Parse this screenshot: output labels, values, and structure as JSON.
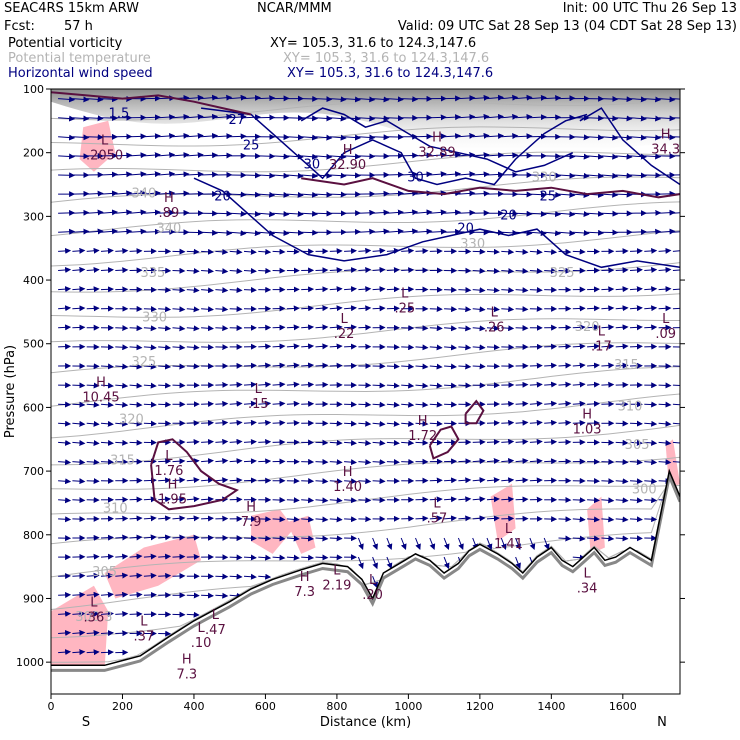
{
  "header": {
    "model": "SEAC4RS 15km ARW",
    "org": "NCAR/MMM",
    "init": "Init: 00 UTC Thu 26 Sep 13",
    "fcst_label": "Fcst:",
    "fcst_value": "57 h",
    "valid": "Valid: 09 UTC Sat 28 Sep 13 (04 CDT Sat 28 Sep 13)",
    "fields": [
      {
        "name": "Potential vorticity",
        "xy": "XY= 105.3, 31.6 to 124.3,147.6"
      },
      {
        "name": "Potential temperature",
        "xy": "XY= 105.3, 31.6 to 124.3,147.6"
      },
      {
        "name": "Horizontal wind speed",
        "xy": "XY= 105.3, 31.6 to 124.3,147.6"
      }
    ]
  },
  "colors": {
    "pv": "#5a1040",
    "theta": "#b4b4b4",
    "wind": "#000080",
    "shade": "#ffb6c1",
    "terrain": "#000000"
  },
  "chart_data": {
    "type": "cross-section",
    "xlabel": "Distance (km)",
    "ylabel": "Pressure (hPa)",
    "xlim": [
      0,
      1760
    ],
    "ylim": [
      1050,
      100
    ],
    "x_ticks": [
      0,
      200,
      400,
      600,
      800,
      1000,
      1200,
      1400,
      1600
    ],
    "y_ticks": [
      100,
      200,
      300,
      400,
      500,
      600,
      700,
      800,
      900,
      1000
    ],
    "end_labels": {
      "left": "S",
      "right": "N"
    },
    "terrain": [
      [
        0,
        1005
      ],
      [
        150,
        1005
      ],
      [
        250,
        990
      ],
      [
        330,
        960
      ],
      [
        400,
        935
      ],
      [
        450,
        920
      ],
      [
        500,
        905
      ],
      [
        560,
        885
      ],
      [
        620,
        870
      ],
      [
        700,
        855
      ],
      [
        760,
        845
      ],
      [
        830,
        850
      ],
      [
        870,
        870
      ],
      [
        900,
        900
      ],
      [
        930,
        860
      ],
      [
        990,
        840
      ],
      [
        1020,
        830
      ],
      [
        1060,
        840
      ],
      [
        1100,
        860
      ],
      [
        1140,
        845
      ],
      [
        1170,
        825
      ],
      [
        1200,
        815
      ],
      [
        1250,
        830
      ],
      [
        1290,
        845
      ],
      [
        1320,
        860
      ],
      [
        1360,
        835
      ],
      [
        1400,
        820
      ],
      [
        1430,
        840
      ],
      [
        1460,
        850
      ],
      [
        1490,
        835
      ],
      [
        1520,
        820
      ],
      [
        1550,
        840
      ],
      [
        1580,
        835
      ],
      [
        1620,
        820
      ],
      [
        1680,
        840
      ],
      [
        1730,
        700
      ],
      [
        1760,
        740
      ]
    ],
    "theta_labels": [
      {
        "text": "340",
        "x": 260,
        "y": 270
      },
      {
        "text": "340",
        "x": 330,
        "y": 325
      },
      {
        "text": "335",
        "x": 285,
        "y": 395
      },
      {
        "text": "330",
        "x": 290,
        "y": 465
      },
      {
        "text": "325",
        "x": 260,
        "y": 535
      },
      {
        "text": "320",
        "x": 225,
        "y": 625
      },
      {
        "text": "315",
        "x": 200,
        "y": 690
      },
      {
        "text": "310",
        "x": 180,
        "y": 765
      },
      {
        "text": "305",
        "x": 150,
        "y": 865
      },
      {
        "text": "300.3",
        "x": 120,
        "y": 935
      },
      {
        "text": "330",
        "x": 1180,
        "y": 350
      },
      {
        "text": "325",
        "x": 1430,
        "y": 395
      },
      {
        "text": "320",
        "x": 1500,
        "y": 480
      },
      {
        "text": "315",
        "x": 1610,
        "y": 540
      },
      {
        "text": "310",
        "x": 1620,
        "y": 605
      },
      {
        "text": "305",
        "x": 1640,
        "y": 665
      },
      {
        "text": "300",
        "x": 1660,
        "y": 735
      },
      {
        "text": "330",
        "x": 1380,
        "y": 245
      }
    ],
    "wind_labels": [
      {
        "text": "27",
        "x": 520,
        "y": 155
      },
      {
        "text": "25",
        "x": 560,
        "y": 195
      },
      {
        "text": "20",
        "x": 480,
        "y": 275
      },
      {
        "text": "30",
        "x": 730,
        "y": 225
      },
      {
        "text": "30",
        "x": 1020,
        "y": 245
      },
      {
        "text": "20",
        "x": 1160,
        "y": 325
      },
      {
        "text": "20",
        "x": 1280,
        "y": 305
      },
      {
        "text": "25",
        "x": 1390,
        "y": 275
      },
      {
        "text": "1.5",
        "x": 190,
        "y": 145
      }
    ],
    "pv_extrema": [
      {
        "type": "L",
        "value": ".2050",
        "x": 150,
        "y": 200
      },
      {
        "type": "H",
        "value": ".89",
        "x": 330,
        "y": 290
      },
      {
        "type": "H",
        "value": "32.90",
        "x": 830,
        "y": 215
      },
      {
        "type": "H",
        "value": "32.89",
        "x": 1080,
        "y": 195
      },
      {
        "type": "H",
        "value": "34.3",
        "x": 1720,
        "y": 190
      },
      {
        "type": "L",
        "value": ".25",
        "x": 990,
        "y": 440
      },
      {
        "type": "L",
        "value": ".22",
        "x": 820,
        "y": 480
      },
      {
        "type": "L",
        "value": ".26",
        "x": 1240,
        "y": 470
      },
      {
        "type": "L",
        "value": ".17",
        "x": 1540,
        "y": 500
      },
      {
        "type": "L",
        "value": ".09",
        "x": 1720,
        "y": 480
      },
      {
        "type": "H",
        "value": "10.45",
        "x": 140,
        "y": 580
      },
      {
        "type": "L",
        "value": ".15",
        "x": 580,
        "y": 590
      },
      {
        "type": "H",
        "value": "1.72",
        "x": 1040,
        "y": 640
      },
      {
        "type": "H",
        "value": "1.03",
        "x": 1500,
        "y": 630
      },
      {
        "type": "L",
        "value": "1.76",
        "x": 330,
        "y": 695
      },
      {
        "type": "H",
        "value": "1.95",
        "x": 340,
        "y": 740
      },
      {
        "type": "H",
        "value": "1.40",
        "x": 830,
        "y": 720
      },
      {
        "type": "H",
        "value": "7.9",
        "x": 560,
        "y": 775
      },
      {
        "type": "L",
        "value": ".57",
        "x": 1080,
        "y": 770
      },
      {
        "type": "L",
        "value": "1.41",
        "x": 1280,
        "y": 810
      },
      {
        "type": "L",
        "value": ".34",
        "x": 1500,
        "y": 880
      },
      {
        "type": "H",
        "value": "7.3",
        "x": 710,
        "y": 885
      },
      {
        "type": "L",
        "value": "2.19",
        "x": 800,
        "y": 875
      },
      {
        "type": "L",
        "value": ".20",
        "x": 900,
        "y": 890
      },
      {
        "type": "L",
        "value": ".36",
        "x": 120,
        "y": 925
      },
      {
        "type": "L",
        "value": ".37",
        "x": 260,
        "y": 955
      },
      {
        "type": "L",
        "value": ".47",
        "x": 460,
        "y": 945
      },
      {
        "type": "L",
        "value": ".10",
        "x": 420,
        "y": 965
      },
      {
        "type": "H",
        "value": "7.3",
        "x": 380,
        "y": 1015
      }
    ]
  }
}
